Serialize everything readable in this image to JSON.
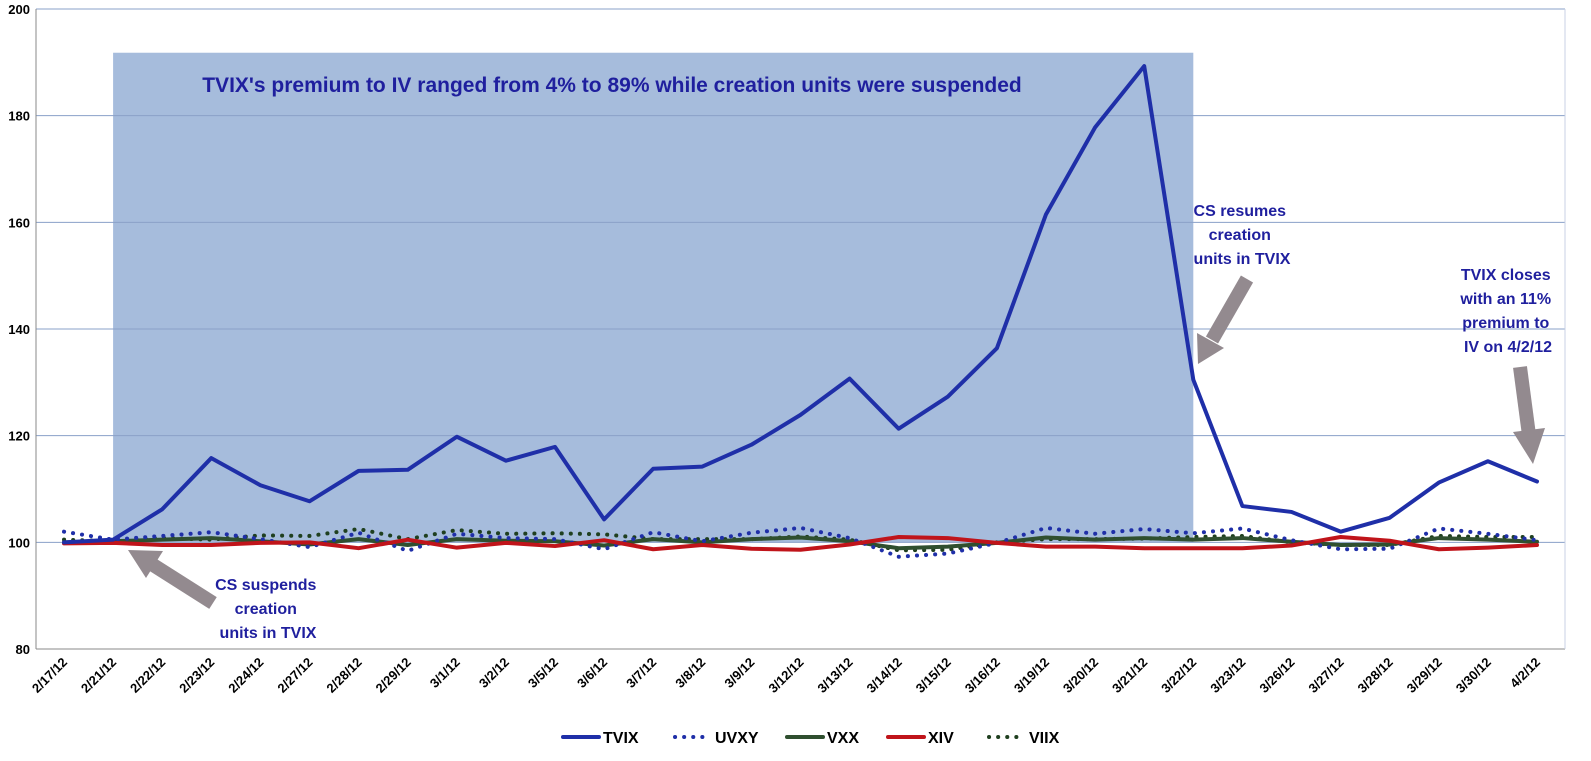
{
  "chart_data": {
    "type": "line",
    "title": "",
    "xlabel": "",
    "ylabel": "",
    "ylim": [
      80,
      200
    ],
    "yticks": [
      80,
      100,
      120,
      140,
      160,
      180,
      200
    ],
    "grid": "horizontal",
    "legend": "bottom",
    "categories": [
      "2/17/12",
      "2/21/12",
      "2/22/12",
      "2/23/12",
      "2/24/12",
      "2/27/12",
      "2/28/12",
      "2/29/12",
      "3/1/12",
      "3/2/12",
      "3/5/12",
      "3/6/12",
      "3/7/12",
      "3/8/12",
      "3/9/12",
      "3/12/12",
      "3/13/12",
      "3/14/12",
      "3/15/12",
      "3/16/12",
      "3/19/12",
      "3/20/12",
      "3/21/12",
      "3/22/12",
      "3/23/12",
      "3/26/12",
      "3/27/12",
      "3/28/12",
      "3/29/12",
      "3/30/12",
      "4/2/12"
    ],
    "series": [
      {
        "name": "TVIX",
        "style": "solid",
        "color": "#1f2fa8",
        "width": 4,
        "values": [
          100,
          100.5,
          106.2,
          115.8,
          110.7,
          107.7,
          113.4,
          113.6,
          119.8,
          115.3,
          117.9,
          104.3,
          113.8,
          114.2,
          118.3,
          123.9,
          130.7,
          121.3,
          127.3,
          136.4,
          161.5,
          177.8,
          189.3,
          130.5,
          106.8,
          105.7,
          102.0,
          104.6,
          111.2,
          115.2,
          111.4
        ]
      },
      {
        "name": "UVXY",
        "style": "dotted",
        "color": "#1f2fa8",
        "width": 4,
        "values": [
          102.0,
          100.5,
          101.2,
          101.9,
          100.6,
          99.1,
          101.8,
          98.4,
          101.6,
          100.8,
          100.6,
          98.7,
          101.9,
          100.2,
          101.8,
          102.7,
          100.8,
          97.3,
          97.9,
          99.9,
          102.7,
          101.6,
          102.5,
          101.7,
          102.6,
          100.4,
          98.7,
          98.8,
          102.6,
          101.6,
          100.4
        ]
      },
      {
        "name": "VXX",
        "style": "solid",
        "color": "#2f4f2f",
        "width": 4,
        "values": [
          100,
          100.2,
          100.5,
          100.8,
          100.2,
          99.6,
          100.6,
          99.5,
          100.6,
          100.3,
          100.2,
          99.4,
          100.6,
          100.0,
          100.6,
          100.9,
          100.2,
          98.9,
          99.2,
          99.9,
          100.9,
          100.5,
          100.8,
          100.5,
          100.8,
          100.1,
          99.5,
          99.6,
          100.8,
          100.5,
          100.1
        ]
      },
      {
        "name": "XIV",
        "style": "solid",
        "color": "#c0141a",
        "width": 4,
        "values": [
          99.8,
          99.9,
          99.5,
          99.5,
          99.9,
          100.0,
          98.9,
          100.5,
          99.0,
          99.9,
          99.3,
          100.4,
          98.7,
          99.5,
          98.8,
          98.6,
          99.6,
          101.0,
          100.8,
          99.9,
          99.2,
          99.2,
          98.9,
          98.9,
          98.9,
          99.4,
          101.0,
          100.3,
          98.7,
          99.0,
          99.5
        ]
      },
      {
        "name": "VIIX",
        "style": "dotted",
        "color": "#1f3f1f",
        "width": 4,
        "values": [
          100.5,
          100.2,
          100.8,
          100.5,
          101.3,
          101.2,
          102.5,
          100.6,
          102.3,
          101.6,
          101.7,
          101.5,
          100.6,
          100.6,
          100.6,
          101.1,
          100.5,
          98.5,
          98.6,
          100.0,
          100.6,
          100.6,
          100.7,
          101.0,
          101.2,
          100.0,
          99.5,
          99.5,
          101.2,
          101.0,
          101.0
        ]
      }
    ],
    "annotations": {
      "shade_label": "TVIX's premium to IV ranged from 4% to 89% while creation units were suspended",
      "suspend": [
        "CS suspends",
        "creation",
        "units in TVIX"
      ],
      "resume": [
        "CS resumes",
        "creation",
        "units in TVIX"
      ],
      "close": [
        "TVIX closes",
        "with an 11%",
        "premium to",
        "IV on 4/2/12"
      ]
    }
  }
}
